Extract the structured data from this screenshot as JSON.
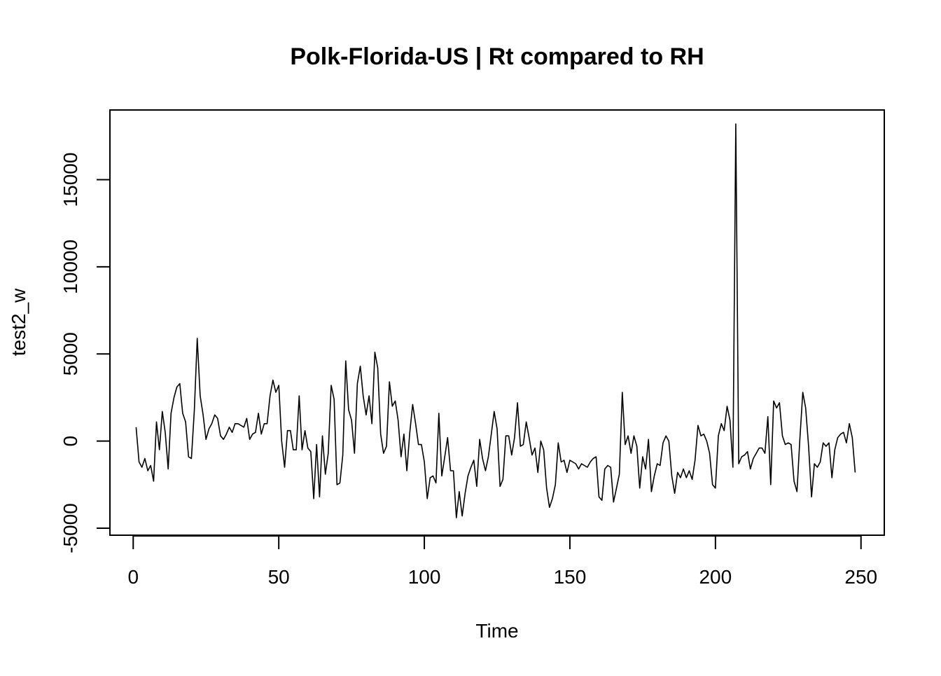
{
  "chart_data": {
    "type": "line",
    "title": "Polk-Florida-US | Rt compared to RH",
    "xlabel": "Time",
    "ylabel": "test2_w",
    "xlim": [
      -8,
      258
    ],
    "ylim": [
      -5400,
      19000
    ],
    "xticks": [
      0,
      50,
      100,
      150,
      200,
      250
    ],
    "xtick_labels": [
      "0",
      "50",
      "100",
      "150",
      "200",
      "250"
    ],
    "yticks": [
      -5000,
      0,
      5000,
      10000,
      15000
    ],
    "ytick_labels": [
      "-5000",
      "0",
      "5000",
      "10000",
      "15000"
    ],
    "grid": false,
    "legend": "none",
    "line_color": "#000000",
    "series": [
      {
        "x_start": 1,
        "x_step": 1,
        "values": [
          800,
          -1200,
          -1500,
          -1000,
          -1700,
          -1400,
          -2300,
          1100,
          -500,
          1700,
          500,
          -1600,
          1600,
          2500,
          3100,
          3300,
          1600,
          1100,
          -900,
          -1000,
          1800,
          5900,
          2600,
          1500,
          100,
          700,
          1000,
          1500,
          1300,
          300,
          100,
          400,
          800,
          500,
          1000,
          1000,
          900,
          800,
          1300,
          100,
          400,
          500,
          1600,
          400,
          1000,
          1000,
          2600,
          3500,
          2800,
          3200,
          0,
          -1500,
          600,
          600,
          -500,
          -500,
          2600,
          -500,
          600,
          -400,
          -600,
          -3300,
          -200,
          -3200,
          300,
          -1900,
          -700,
          3200,
          2400,
          -2500,
          -2400,
          -800,
          4600,
          1800,
          1200,
          -700,
          3300,
          4300,
          2600,
          1500,
          2600,
          1000,
          5100,
          4200,
          400,
          -700,
          -300,
          3400,
          2000,
          2300,
          1200,
          -900,
          400,
          -1700,
          500,
          2100,
          1000,
          -200,
          -200,
          -1200,
          -3300,
          -2100,
          -2000,
          -2400,
          1600,
          -2000,
          -900,
          200,
          -1700,
          -1700,
          -4400,
          -2900,
          -4300,
          -3000,
          -2000,
          -1500,
          -1100,
          -2600,
          100,
          -1000,
          -1700,
          -900,
          400,
          1700,
          700,
          -2600,
          -2200,
          300,
          300,
          -800,
          200,
          2200,
          -300,
          -200,
          1100,
          200,
          -800,
          -400,
          -1800,
          0,
          -500,
          -2700,
          -3800,
          -3300,
          -2500,
          -100,
          -1200,
          -1100,
          -1800,
          -1100,
          -1200,
          -1300,
          -1600,
          -1300,
          -1400,
          -1500,
          -1200,
          -1000,
          -900,
          -3200,
          -3400,
          -1600,
          -1400,
          -1500,
          -3500,
          -2700,
          -1900,
          2800,
          -200,
          300,
          -700,
          300,
          -300,
          -2700,
          -900,
          -1600,
          100,
          -2900,
          -2000,
          -1300,
          -1400,
          -100,
          300,
          0,
          -2000,
          -3000,
          -1800,
          -2100,
          -1600,
          -2100,
          -1700,
          -2200,
          -1100,
          900,
          300,
          400,
          0,
          -700,
          -2500,
          -2700,
          300,
          1000,
          600,
          2000,
          1200,
          -1500,
          18200,
          -1300,
          -900,
          -800,
          -600,
          -1600,
          -1000,
          -700,
          -400,
          -400,
          -700,
          1400,
          -2500,
          2300,
          1900,
          2200,
          300,
          -200,
          -100,
          -200,
          -2300,
          -2900,
          100,
          2800,
          1900,
          -300,
          -3200,
          -1300,
          -1500,
          -1200,
          -100,
          -300,
          -100,
          -2100,
          -500,
          200,
          400,
          500,
          -100,
          1000,
          200,
          -1800
        ]
      }
    ]
  }
}
